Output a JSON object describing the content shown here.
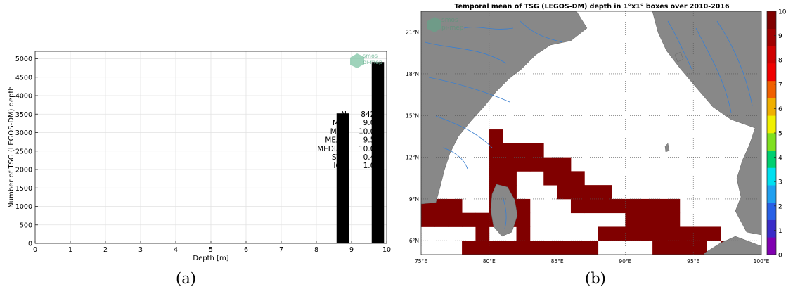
{
  "captions": {
    "a": "(a)",
    "b": "(b)"
  },
  "watermark": {
    "line1": "smos",
    "line2": "pi-mep"
  },
  "chart_data": [
    {
      "type": "bar",
      "title": "",
      "xlabel": "Depth [m]",
      "ylabel": "Number of TSG (LEGOS-DM) depth",
      "xlim": [
        0,
        10
      ],
      "ylim": [
        0,
        5200
      ],
      "x_ticks": [
        0,
        1,
        2,
        3,
        4,
        5,
        6,
        7,
        8,
        9,
        10
      ],
      "y_ticks": [
        0,
        500,
        1000,
        1500,
        2000,
        2500,
        3000,
        3500,
        4000,
        4500,
        5000
      ],
      "grid": true,
      "bars": [
        {
          "x": 8.75,
          "width": 0.35,
          "value": 3520
        },
        {
          "x": 9.75,
          "width": 0.35,
          "value": 4910
        }
      ],
      "stats": [
        {
          "label": "N",
          "value": "8428"
        },
        {
          "label": "MIN",
          "value": "9.00"
        },
        {
          "label": "MAX",
          "value": "10.00"
        },
        {
          "label": "MEAN",
          "value": "9.58"
        },
        {
          "label": "MEDIAN",
          "value": "10.00"
        },
        {
          "label": "STD",
          "value": "0.49"
        },
        {
          "label": "IQR",
          "value": "1.00"
        }
      ]
    },
    {
      "type": "heatmap",
      "title": "Temporal mean of TSG (LEGOS-DM) depth in 1°x1° boxes over 2010-2016",
      "lon_range": [
        75,
        100
      ],
      "lat_range": [
        5,
        22.5
      ],
      "lon_ticks": [
        {
          "value": 75,
          "label": "75°E"
        },
        {
          "value": 80,
          "label": "80°E"
        },
        {
          "value": 85,
          "label": "85°E"
        },
        {
          "value": 90,
          "label": "90°E"
        },
        {
          "value": 95,
          "label": "95°E"
        },
        {
          "value": 100,
          "label": "100°E"
        }
      ],
      "lat_ticks": [
        {
          "value": 6,
          "label": "6°N"
        },
        {
          "value": 9,
          "label": "9°N"
        },
        {
          "value": 12,
          "label": "12°N"
        },
        {
          "value": 15,
          "label": "15°N"
        },
        {
          "value": 18,
          "label": "18°N"
        },
        {
          "value": 21,
          "label": "21°N"
        }
      ],
      "colorbar": {
        "min": 0,
        "max": 10,
        "ticks": [
          0,
          1,
          2,
          3,
          4,
          5,
          6,
          7,
          8,
          9,
          10
        ],
        "colors": [
          "#8000b0",
          "#3a2cc8",
          "#2860e6",
          "#20a0f0",
          "#00e0f0",
          "#00d070",
          "#80e020",
          "#f0f000",
          "#f0b000",
          "#f06000",
          "#f00000",
          "#d00000",
          "#a00000",
          "#800000"
        ]
      },
      "colors": {
        "land": "#888888",
        "rivers": "#3a7fd0",
        "ocean": "#ffffff"
      },
      "cells": [
        {
          "lon": 80,
          "lat": 13,
          "value": 9.5
        },
        {
          "lon": 81,
          "lat": 12,
          "value": 10
        },
        {
          "lon": 82,
          "lat": 12,
          "value": 10
        },
        {
          "lon": 83,
          "lat": 12,
          "value": 10
        },
        {
          "lon": 80,
          "lat": 12,
          "value": 9.5
        },
        {
          "lon": 80,
          "lat": 11,
          "value": 9.5
        },
        {
          "lon": 81,
          "lat": 11,
          "value": 9.5
        },
        {
          "lon": 82,
          "lat": 11,
          "value": 9.5
        },
        {
          "lon": 83,
          "lat": 11,
          "value": 9.5
        },
        {
          "lon": 84,
          "lat": 11,
          "value": 10
        },
        {
          "lon": 85,
          "lat": 11,
          "value": 10
        },
        {
          "lon": 75,
          "lat": 10,
          "value": 9.5
        },
        {
          "lon": 80,
          "lat": 10,
          "value": 10
        },
        {
          "lon": 81,
          "lat": 10,
          "value": 9.5
        },
        {
          "lon": 84,
          "lat": 10,
          "value": 10
        },
        {
          "lon": 85,
          "lat": 10,
          "value": 10
        },
        {
          "lon": 86,
          "lat": 10,
          "value": 10
        },
        {
          "lon": 80,
          "lat": 9,
          "value": 9.5
        },
        {
          "lon": 81,
          "lat": 9,
          "value": 9.5
        },
        {
          "lon": 85,
          "lat": 9,
          "value": 10
        },
        {
          "lon": 86,
          "lat": 9,
          "value": 9.5
        },
        {
          "lon": 87,
          "lat": 9,
          "value": 10
        },
        {
          "lon": 88,
          "lat": 9,
          "value": 10
        },
        {
          "lon": 75,
          "lat": 8,
          "value": 10
        },
        {
          "lon": 76,
          "lat": 8,
          "value": 10
        },
        {
          "lon": 77,
          "lat": 8,
          "value": 10
        },
        {
          "lon": 80,
          "lat": 8,
          "value": 9.5
        },
        {
          "lon": 81,
          "lat": 8,
          "value": 9.5
        },
        {
          "lon": 82,
          "lat": 8,
          "value": 9.5
        },
        {
          "lon": 86,
          "lat": 8,
          "value": 10
        },
        {
          "lon": 87,
          "lat": 8,
          "value": 10
        },
        {
          "lon": 88,
          "lat": 8,
          "value": 10
        },
        {
          "lon": 89,
          "lat": 8,
          "value": 10
        },
        {
          "lon": 90,
          "lat": 8,
          "value": 10
        },
        {
          "lon": 91,
          "lat": 8,
          "value": 10
        },
        {
          "lon": 92,
          "lat": 8,
          "value": 10
        },
        {
          "lon": 93,
          "lat": 8,
          "value": 10
        },
        {
          "lon": 75,
          "lat": 7,
          "value": 10
        },
        {
          "lon": 76,
          "lat": 7,
          "value": 10
        },
        {
          "lon": 77,
          "lat": 7,
          "value": 10
        },
        {
          "lon": 78,
          "lat": 7,
          "value": 10
        },
        {
          "lon": 79,
          "lat": 7,
          "value": 10
        },
        {
          "lon": 80,
          "lat": 7,
          "value": 9.5
        },
        {
          "lon": 81,
          "lat": 7,
          "value": 9.5
        },
        {
          "lon": 82,
          "lat": 7,
          "value": 9.5
        },
        {
          "lon": 90,
          "lat": 7,
          "value": 9.5
        },
        {
          "lon": 91,
          "lat": 7,
          "value": 10
        },
        {
          "lon": 92,
          "lat": 7,
          "value": 10
        },
        {
          "lon": 93,
          "lat": 7,
          "value": 10
        },
        {
          "lon": 79,
          "lat": 6,
          "value": 9.5
        },
        {
          "lon": 82,
          "lat": 6,
          "value": 9.5
        },
        {
          "lon": 88,
          "lat": 6,
          "value": 9.5
        },
        {
          "lon": 89,
          "lat": 6,
          "value": 9.5
        },
        {
          "lon": 90,
          "lat": 6,
          "value": 9.5
        },
        {
          "lon": 91,
          "lat": 6,
          "value": 9.5
        },
        {
          "lon": 92,
          "lat": 6,
          "value": 9.5
        },
        {
          "lon": 93,
          "lat": 6,
          "value": 9.5
        },
        {
          "lon": 94,
          "lat": 6,
          "value": 10
        },
        {
          "lon": 95,
          "lat": 6,
          "value": 10
        },
        {
          "lon": 96,
          "lat": 6,
          "value": 10
        },
        {
          "lon": 78,
          "lat": 5,
          "value": 9.5
        },
        {
          "lon": 79,
          "lat": 5,
          "value": 9.5
        },
        {
          "lon": 80,
          "lat": 5,
          "value": 9.5
        },
        {
          "lon": 81,
          "lat": 5,
          "value": 9.5
        },
        {
          "lon": 82,
          "lat": 5,
          "value": 9.5
        },
        {
          "lon": 83,
          "lat": 5,
          "value": 9.5
        },
        {
          "lon": 84,
          "lat": 5,
          "value": 9.5
        },
        {
          "lon": 85,
          "lat": 5,
          "value": 9.5
        },
        {
          "lon": 86,
          "lat": 5,
          "value": 9.5
        },
        {
          "lon": 87,
          "lat": 5,
          "value": 9.5
        },
        {
          "lon": 92,
          "lat": 5,
          "value": 9.5
        },
        {
          "lon": 93,
          "lat": 5,
          "value": 9.5
        },
        {
          "lon": 94,
          "lat": 5,
          "value": 9.5
        },
        {
          "lon": 95,
          "lat": 5,
          "value": 9.5
        },
        {
          "lon": 97,
          "lat": 5,
          "value": 10
        },
        {
          "lon": 98,
          "lat": 5,
          "value": 10
        }
      ]
    }
  ]
}
